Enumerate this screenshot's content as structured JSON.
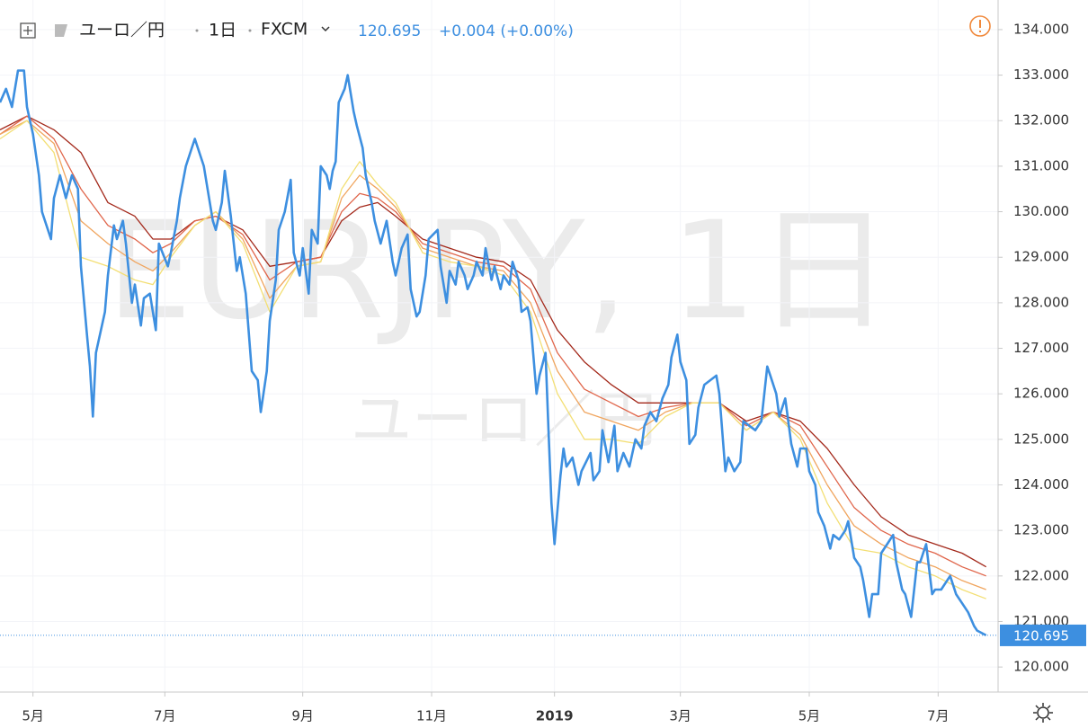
{
  "header": {
    "symbol": "ユーロ／円",
    "interval": "1日",
    "exchange": "FXCM",
    "last": "120.695",
    "change": "+0.004 (+0.00%)"
  },
  "watermark": {
    "main": "EURJPY, 1日",
    "sub": "ユーロ／円"
  },
  "chart_data": {
    "type": "line",
    "xlim": [
      0,
      333
    ],
    "ylim": [
      119.45,
      134.65
    ],
    "grid": true,
    "xticks": [
      {
        "value": 11,
        "label": "5月"
      },
      {
        "value": 55,
        "label": "7月"
      },
      {
        "value": 101,
        "label": "9月"
      },
      {
        "value": 144,
        "label": "11月"
      },
      {
        "value": 185,
        "label": "2019",
        "bold": true
      },
      {
        "value": 227,
        "label": "3月"
      },
      {
        "value": 270,
        "label": "5月"
      },
      {
        "value": 313,
        "label": "7月"
      }
    ],
    "yticks": [
      {
        "value": 120,
        "label": "120.000"
      },
      {
        "value": 121,
        "label": "121.000"
      },
      {
        "value": 122,
        "label": "122.000"
      },
      {
        "value": 123,
        "label": "123.000"
      },
      {
        "value": 124,
        "label": "124.000"
      },
      {
        "value": 125,
        "label": "125.000"
      },
      {
        "value": 126,
        "label": "126.000"
      },
      {
        "value": 127,
        "label": "127.000"
      },
      {
        "value": 128,
        "label": "128.000"
      },
      {
        "value": 129,
        "label": "129.000"
      },
      {
        "value": 130,
        "label": "130.000"
      },
      {
        "value": 131,
        "label": "131.000"
      },
      {
        "value": 132,
        "label": "132.000"
      },
      {
        "value": 133,
        "label": "133.000"
      },
      {
        "value": 134,
        "label": "134.000"
      }
    ],
    "last_price": {
      "value": 120.695,
      "label": "120.695",
      "color": "#3d8fe0"
    },
    "series": [
      {
        "color": "#a3281a",
        "x": [
          0,
          9,
          18,
          27,
          36,
          45,
          51,
          57,
          65,
          72,
          81,
          90,
          99,
          107,
          114,
          120,
          126,
          132,
          141,
          150,
          159,
          168,
          177,
          186,
          195,
          204,
          213,
          222,
          231,
          240,
          249,
          258,
          267,
          276,
          285,
          294,
          303,
          312,
          321,
          329
        ],
        "values": [
          131.8,
          132.1,
          131.8,
          131.3,
          130.2,
          129.9,
          129.4,
          129.4,
          129.8,
          129.9,
          129.6,
          128.8,
          128.9,
          129.0,
          129.8,
          130.1,
          130.2,
          129.9,
          129.4,
          129.2,
          129.0,
          128.9,
          128.5,
          127.4,
          126.7,
          126.2,
          125.8,
          125.8,
          125.8,
          125.8,
          125.4,
          125.6,
          125.4,
          124.8,
          124.0,
          123.3,
          122.9,
          122.7,
          122.5,
          122.2
        ]
      },
      {
        "color": "#e0654a",
        "x": [
          0,
          9,
          18,
          27,
          36,
          45,
          51,
          57,
          65,
          72,
          81,
          90,
          99,
          107,
          114,
          120,
          126,
          132,
          141,
          150,
          159,
          168,
          177,
          186,
          195,
          204,
          213,
          222,
          231,
          240,
          249,
          258,
          267,
          276,
          285,
          294,
          303,
          312,
          321,
          329
        ],
        "values": [
          131.7,
          132.1,
          131.6,
          130.5,
          129.7,
          129.4,
          129.1,
          129.3,
          129.8,
          129.9,
          129.5,
          128.5,
          128.9,
          129.0,
          130.0,
          130.4,
          130.3,
          130.0,
          129.3,
          129.1,
          128.9,
          128.8,
          128.3,
          126.9,
          126.1,
          125.8,
          125.5,
          125.7,
          125.8,
          125.8,
          125.3,
          125.6,
          125.3,
          124.4,
          123.5,
          123.0,
          122.7,
          122.5,
          122.2,
          122.0
        ]
      },
      {
        "color": "#f0a55e",
        "x": [
          0,
          9,
          18,
          27,
          36,
          45,
          51,
          57,
          65,
          72,
          81,
          90,
          99,
          107,
          114,
          120,
          126,
          132,
          141,
          150,
          159,
          168,
          177,
          186,
          195,
          204,
          213,
          222,
          231,
          240,
          249,
          258,
          267,
          276,
          285,
          294,
          303,
          312,
          321,
          329
        ],
        "values": [
          131.7,
          132.0,
          131.5,
          129.8,
          129.3,
          128.9,
          128.7,
          129.1,
          129.7,
          130.0,
          129.4,
          128.1,
          128.8,
          128.9,
          130.3,
          130.8,
          130.5,
          130.1,
          129.2,
          129.0,
          128.8,
          128.7,
          128.0,
          126.5,
          125.6,
          125.4,
          125.2,
          125.6,
          125.8,
          125.8,
          125.2,
          125.6,
          125.1,
          124.0,
          123.1,
          122.7,
          122.4,
          122.2,
          121.9,
          121.7
        ]
      },
      {
        "color": "#f3df74",
        "x": [
          0,
          9,
          18,
          27,
          36,
          45,
          51,
          57,
          65,
          72,
          81,
          90,
          99,
          107,
          114,
          120,
          126,
          132,
          141,
          150,
          159,
          168,
          177,
          186,
          195,
          204,
          213,
          222,
          231,
          240,
          249,
          258,
          267,
          276,
          285,
          294,
          303,
          312,
          321,
          329
        ],
        "values": [
          131.6,
          132.0,
          131.3,
          129.0,
          128.8,
          128.5,
          128.4,
          129.0,
          129.7,
          130.0,
          129.3,
          127.8,
          128.8,
          128.9,
          130.5,
          131.1,
          130.6,
          130.2,
          129.1,
          128.9,
          128.8,
          128.6,
          127.8,
          126.0,
          125.0,
          125.0,
          124.9,
          125.5,
          125.8,
          125.8,
          125.2,
          125.6,
          125.0,
          123.6,
          122.6,
          122.5,
          122.2,
          122.0,
          121.7,
          121.5
        ]
      },
      {
        "color": "#3d8fe0",
        "width": 2.6,
        "x": [
          0,
          2,
          4,
          6,
          8,
          9,
          11,
          13,
          14,
          17,
          18,
          20,
          22,
          24,
          26,
          27,
          29,
          30,
          31,
          32,
          35,
          36,
          38,
          39,
          41,
          42,
          44,
          45,
          47,
          48,
          50,
          52,
          53,
          56,
          57,
          59,
          60,
          62,
          64,
          65,
          68,
          69,
          71,
          72,
          74,
          75,
          77,
          79,
          80,
          82,
          84,
          86,
          87,
          89,
          90,
          92,
          93,
          95,
          97,
          98,
          100,
          101,
          103,
          104,
          106,
          107,
          109,
          110,
          111,
          112,
          113,
          115,
          116,
          118,
          119,
          121,
          122,
          124,
          125,
          127,
          129,
          131,
          132,
          134,
          136,
          137,
          139,
          140,
          142,
          143,
          146,
          147,
          149,
          150,
          152,
          153,
          155,
          156,
          158,
          159,
          161,
          162,
          164,
          165,
          167,
          168,
          170,
          171,
          173,
          174,
          176,
          177,
          179,
          180,
          182,
          183,
          184,
          185,
          187,
          188,
          189,
          191,
          193,
          194,
          197,
          198,
          200,
          201,
          203,
          205,
          206,
          208,
          210,
          212,
          214,
          215,
          217,
          219,
          221,
          223,
          224,
          226,
          227,
          229,
          230,
          232,
          233,
          235,
          237,
          239,
          240,
          242,
          243,
          245,
          247,
          248,
          250,
          252,
          254,
          256,
          257,
          259,
          260,
          262,
          264,
          266,
          267,
          269,
          270,
          272,
          273,
          275,
          277,
          278,
          280,
          282,
          283,
          285,
          287,
          288,
          290,
          291,
          293,
          294,
          296,
          298,
          299,
          301,
          302,
          304,
          306,
          307,
          309,
          311,
          312,
          314,
          316,
          317,
          319,
          321,
          323,
          325,
          326,
          329
        ],
        "values": [
          132.4,
          132.7,
          132.3,
          133.1,
          133.1,
          132.3,
          131.7,
          130.8,
          130.0,
          129.4,
          130.3,
          130.8,
          130.3,
          130.8,
          130.5,
          128.8,
          127.3,
          126.6,
          125.5,
          126.9,
          127.8,
          128.6,
          129.7,
          129.4,
          129.8,
          129.3,
          128.0,
          128.4,
          127.5,
          128.1,
          128.2,
          127.4,
          129.3,
          128.8,
          129.1,
          129.8,
          130.3,
          131.0,
          131.4,
          131.6,
          131.0,
          130.6,
          129.8,
          129.6,
          130.2,
          130.9,
          129.9,
          128.7,
          129.0,
          128.2,
          126.5,
          126.3,
          125.6,
          126.5,
          127.6,
          128.5,
          129.6,
          130.0,
          130.7,
          129.1,
          128.6,
          129.2,
          128.2,
          129.6,
          129.3,
          131.0,
          130.8,
          130.5,
          130.9,
          131.1,
          132.4,
          132.7,
          133.0,
          132.2,
          131.9,
          131.4,
          130.8,
          130.2,
          129.8,
          129.3,
          129.8,
          128.9,
          128.6,
          129.2,
          129.5,
          128.3,
          127.7,
          127.8,
          128.6,
          129.4,
          129.6,
          128.8,
          128.0,
          128.7,
          128.4,
          128.9,
          128.6,
          128.3,
          128.6,
          128.9,
          128.6,
          129.2,
          128.5,
          128.8,
          128.3,
          128.6,
          128.4,
          128.9,
          128.5,
          127.8,
          127.9,
          127.6,
          126.0,
          126.4,
          126.9,
          125.2,
          123.6,
          122.7,
          124.2,
          124.8,
          124.4,
          124.6,
          124.0,
          124.3,
          124.7,
          124.1,
          124.3,
          125.2,
          124.5,
          125.3,
          124.3,
          124.7,
          124.4,
          125.0,
          124.8,
          125.3,
          125.6,
          125.4,
          125.9,
          126.2,
          126.8,
          127.3,
          126.7,
          126.3,
          124.9,
          125.1,
          125.7,
          126.2,
          126.3,
          126.4,
          126.0,
          124.3,
          124.6,
          124.3,
          124.5,
          125.4,
          125.3,
          125.2,
          125.4,
          126.6,
          126.4,
          126.0,
          125.5,
          125.9,
          124.9,
          124.4,
          124.8,
          124.8,
          124.3,
          124.0,
          123.4,
          123.1,
          122.6,
          122.9,
          122.8,
          123.0,
          123.2,
          122.4,
          122.2,
          121.9,
          121.1,
          121.6,
          121.6,
          122.5,
          122.7,
          122.9,
          122.3,
          121.7,
          121.6,
          121.1,
          122.3,
          122.3,
          122.7,
          121.6,
          121.7,
          121.7,
          121.9,
          122.0,
          121.6,
          121.4,
          121.2,
          120.9,
          120.8,
          120.695
        ]
      }
    ]
  }
}
